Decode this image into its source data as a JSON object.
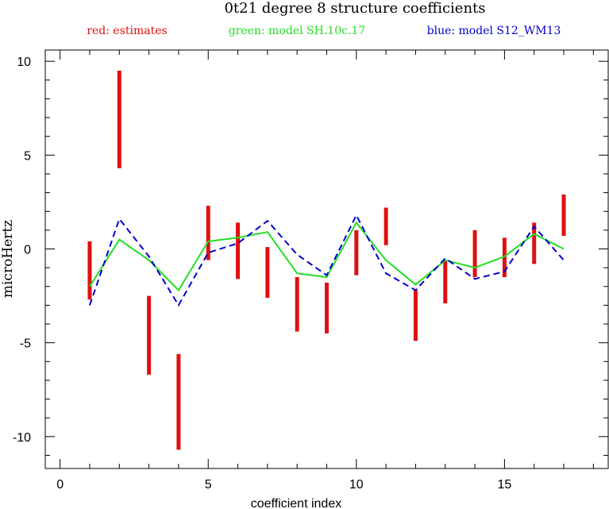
{
  "chart_data": {
    "type": "line",
    "title": "0t21 degree 8 structure coefficients",
    "legend": [
      {
        "label": "red: estimates",
        "color": "#e01010"
      },
      {
        "label": "green: model SH.10c.17",
        "color": "#22dd22"
      },
      {
        "label": "blue: model S12_WM13",
        "color": "#0000cc"
      }
    ],
    "xlabel": "coefficient index",
    "ylabel": "microHertz",
    "xlim": [
      -0.5,
      18.5
    ],
    "ylim": [
      -11.7,
      10.6
    ],
    "xticks": [
      0,
      5,
      10,
      15
    ],
    "yticks": [
      -10,
      -5,
      0,
      5,
      10
    ],
    "grid": false,
    "estimates": [
      {
        "x": 1,
        "low": -2.7,
        "high": 0.4
      },
      {
        "x": 2,
        "low": 4.3,
        "high": 9.5
      },
      {
        "x": 3,
        "low": -6.7,
        "high": -2.5
      },
      {
        "x": 4,
        "low": -10.7,
        "high": -5.6
      },
      {
        "x": 5,
        "low": -0.6,
        "high": 2.3
      },
      {
        "x": 6,
        "low": -1.6,
        "high": 1.4
      },
      {
        "x": 7,
        "low": -2.6,
        "high": 0.1
      },
      {
        "x": 8,
        "low": -4.4,
        "high": -1.5
      },
      {
        "x": 9,
        "low": -4.5,
        "high": -1.8
      },
      {
        "x": 10,
        "low": -1.4,
        "high": 1.0
      },
      {
        "x": 11,
        "low": 0.2,
        "high": 2.2
      },
      {
        "x": 12,
        "low": -4.9,
        "high": -2.2
      },
      {
        "x": 13,
        "low": -2.9,
        "high": -0.6
      },
      {
        "x": 14,
        "low": -1.5,
        "high": 1.0
      },
      {
        "x": 15,
        "low": -1.5,
        "high": 0.6
      },
      {
        "x": 16,
        "low": -0.8,
        "high": 1.4
      },
      {
        "x": 17,
        "low": 0.7,
        "high": 2.9
      }
    ],
    "series": [
      {
        "name": "model SH.10c.17",
        "color": "#22dd22",
        "dash": "solid",
        "x": [
          1,
          2,
          3,
          4,
          5,
          6,
          7,
          8,
          9,
          10,
          11,
          12,
          13,
          14,
          15,
          16,
          17
        ],
        "values": [
          -2.0,
          0.5,
          -0.6,
          -2.2,
          0.4,
          0.6,
          0.9,
          -1.3,
          -1.5,
          1.4,
          -0.6,
          -1.9,
          -0.6,
          -1.0,
          -0.4,
          0.8,
          0.0
        ]
      },
      {
        "name": "model S12_WM13",
        "color": "#0000cc",
        "dash": "dashed",
        "x": [
          1,
          2,
          3,
          4,
          5,
          6,
          7,
          8,
          9,
          10,
          11,
          12,
          13,
          14,
          15,
          16,
          17
        ],
        "values": [
          -3.0,
          1.6,
          -0.4,
          -3.0,
          -0.2,
          0.3,
          1.5,
          -0.3,
          -1.4,
          1.8,
          -1.3,
          -2.2,
          -0.5,
          -1.6,
          -1.2,
          1.2,
          -0.6
        ]
      }
    ]
  }
}
